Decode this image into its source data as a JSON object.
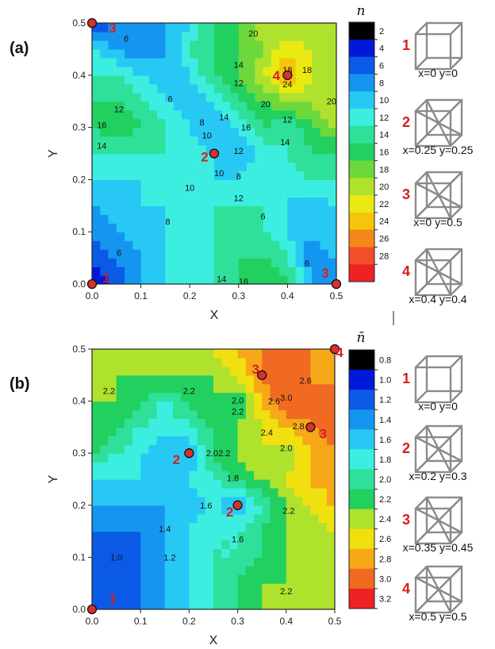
{
  "chart_data": [
    {
      "type": "heatmap",
      "panel": "(a)",
      "xlabel": "X",
      "ylabel": "Y",
      "xlim": [
        0,
        0.5
      ],
      "ylim": [
        0,
        0.5
      ],
      "xticks": [
        "0.0",
        "0.1",
        "0.2",
        "0.3",
        "0.4",
        "0.5"
      ],
      "yticks": [
        "0.0",
        "0.1",
        "0.2",
        "0.3",
        "0.4",
        "0.5"
      ],
      "colorbar": {
        "title": "n",
        "ticks": [
          "2",
          "4",
          "6",
          "8",
          "10",
          "12",
          "14",
          "16",
          "18",
          "20",
          "22",
          "24",
          "26",
          "28"
        ],
        "colors": [
          "#000000",
          "#0018d8",
          "#0a5ae6",
          "#1496f0",
          "#28c8f5",
          "#3ceee0",
          "#2fe09a",
          "#22d060",
          "#6cd83c",
          "#aee22c",
          "#e8ea12",
          "#f7c40c",
          "#f5881a",
          "#f24f28",
          "#ee2222"
        ]
      },
      "grid_x": [
        0,
        0.05,
        0.1,
        0.15,
        0.2,
        0.25,
        0.3,
        0.35,
        0.4,
        0.45,
        0.5
      ],
      "grid_y": [
        0,
        0.05,
        0.1,
        0.15,
        0.2,
        0.25,
        0.3,
        0.35,
        0.4,
        0.45,
        0.5
      ],
      "z": [
        [
          2,
          5,
          8,
          10,
          10,
          12,
          14,
          16,
          14,
          8,
          6
        ],
        [
          4,
          6,
          8,
          10,
          10,
          12,
          14,
          14,
          12,
          6,
          8
        ],
        [
          6,
          8,
          9,
          10,
          10,
          12,
          12,
          12,
          10,
          8,
          10
        ],
        [
          8,
          9,
          10,
          10,
          10,
          12,
          12,
          12,
          10,
          8,
          10
        ],
        [
          10,
          10,
          10,
          10,
          10,
          10,
          10,
          12,
          10,
          12,
          12
        ],
        [
          12,
          12,
          12,
          12,
          11,
          10,
          8,
          10,
          12,
          14,
          14
        ],
        [
          14,
          16,
          14,
          12,
          10,
          8,
          10,
          14,
          12,
          16,
          18
        ],
        [
          14,
          14,
          12,
          10,
          8,
          10,
          14,
          16,
          18,
          18,
          20
        ],
        [
          12,
          12,
          10,
          8,
          10,
          14,
          16,
          20,
          24,
          20,
          18
        ],
        [
          10,
          8,
          6,
          8,
          12,
          14,
          16,
          18,
          22,
          20,
          18
        ],
        [
          4,
          6,
          6,
          8,
          10,
          14,
          16,
          20,
          18,
          18,
          18
        ]
      ],
      "contour_labels": [
        {
          "x": 0.07,
          "y": 0.47,
          "text": "6"
        },
        {
          "x": 0.33,
          "y": 0.48,
          "text": "20"
        },
        {
          "x": 0.3,
          "y": 0.42,
          "text": "14"
        },
        {
          "x": 0.3,
          "y": 0.385,
          "text": "12"
        },
        {
          "x": 0.4,
          "y": 0.41,
          "text": "18"
        },
        {
          "x": 0.44,
          "y": 0.41,
          "text": "18"
        },
        {
          "x": 0.4,
          "y": 0.383,
          "text": "24"
        },
        {
          "x": 0.355,
          "y": 0.345,
          "text": "20"
        },
        {
          "x": 0.49,
          "y": 0.35,
          "text": "20"
        },
        {
          "x": 0.16,
          "y": 0.355,
          "text": "6"
        },
        {
          "x": 0.055,
          "y": 0.335,
          "text": "12"
        },
        {
          "x": 0.02,
          "y": 0.305,
          "text": "16"
        },
        {
          "x": 0.02,
          "y": 0.265,
          "text": "14"
        },
        {
          "x": 0.225,
          "y": 0.31,
          "text": "8"
        },
        {
          "x": 0.235,
          "y": 0.285,
          "text": "10"
        },
        {
          "x": 0.27,
          "y": 0.32,
          "text": "14"
        },
        {
          "x": 0.315,
          "y": 0.3,
          "text": "16"
        },
        {
          "x": 0.3,
          "y": 0.255,
          "text": "12"
        },
        {
          "x": 0.4,
          "y": 0.315,
          "text": "12"
        },
        {
          "x": 0.395,
          "y": 0.272,
          "text": "14"
        },
        {
          "x": 0.26,
          "y": 0.213,
          "text": "10"
        },
        {
          "x": 0.3,
          "y": 0.207,
          "text": "8"
        },
        {
          "x": 0.2,
          "y": 0.185,
          "text": "10"
        },
        {
          "x": 0.3,
          "y": 0.165,
          "text": "12"
        },
        {
          "x": 0.35,
          "y": 0.13,
          "text": "6"
        },
        {
          "x": 0.155,
          "y": 0.12,
          "text": "8"
        },
        {
          "x": 0.055,
          "y": 0.06,
          "text": "6"
        },
        {
          "x": 0.44,
          "y": 0.04,
          "text": "6"
        },
        {
          "x": 0.265,
          "y": 0.01,
          "text": "14"
        },
        {
          "x": 0.31,
          "y": 0.005,
          "text": "16"
        }
      ],
      "points": [
        {
          "x": 0,
          "y": 0.5,
          "label": "3"
        },
        {
          "x": 0,
          "y": 0,
          "label": "1"
        },
        {
          "x": 0.25,
          "y": 0.25,
          "label": "2"
        },
        {
          "x": 0.4,
          "y": 0.4,
          "label": "4"
        },
        {
          "x": 0.5,
          "y": 0,
          "label": "3"
        }
      ],
      "point_markers": [
        {
          "x": 0,
          "y": 0.5
        },
        {
          "x": 0,
          "y": 0
        },
        {
          "x": 0.25,
          "y": 0.25
        },
        {
          "x": 0.4,
          "y": 0.4
        },
        {
          "x": 0.5,
          "y": 0
        }
      ],
      "side_items": [
        {
          "num": "1",
          "caption": "x=0 y=0"
        },
        {
          "num": "2",
          "caption": "x=0.25 y=0.25"
        },
        {
          "num": "3",
          "caption": "x=0 y=0.5"
        },
        {
          "num": "4",
          "caption": "x=0.4 y=0.4"
        }
      ]
    },
    {
      "type": "heatmap",
      "panel": "(b)",
      "xlabel": "X",
      "ylabel": "Y",
      "xlim": [
        0,
        0.5
      ],
      "ylim": [
        0,
        0.5
      ],
      "xticks": [
        "0.0",
        "0.1",
        "0.2",
        "0.3",
        "0.4",
        "0.5"
      ],
      "yticks": [
        "0.0",
        "0.1",
        "0.2",
        "0.3",
        "0.4",
        "0.5"
      ],
      "colorbar": {
        "title": "n̄",
        "ticks": [
          "0.8",
          "1.0",
          "1.2",
          "1.4",
          "1.6",
          "1.8",
          "2.0",
          "2.2",
          "2.4",
          "2.6",
          "2.8",
          "3.0",
          "3.2"
        ],
        "colors": [
          "#000000",
          "#0018d8",
          "#0a5ae6",
          "#1496f0",
          "#28c8f5",
          "#3ceee0",
          "#2fe09a",
          "#22d060",
          "#aee22c",
          "#f0e010",
          "#f7a818",
          "#f06a22",
          "#ee2222"
        ]
      },
      "grid_x": [
        0,
        0.05,
        0.1,
        0.15,
        0.2,
        0.25,
        0.3,
        0.35,
        0.4,
        0.45,
        0.5
      ],
      "grid_y": [
        0,
        0.05,
        0.1,
        0.15,
        0.2,
        0.25,
        0.3,
        0.35,
        0.4,
        0.45,
        0.5
      ],
      "z": [
        [
          1.0,
          1.0,
          1.2,
          1.4,
          1.6,
          1.8,
          2.0,
          2.2,
          2.2,
          2.2,
          2.2
        ],
        [
          1.0,
          1.0,
          1.2,
          1.4,
          1.6,
          1.8,
          2.0,
          2.2,
          2.2,
          2.2,
          2.2
        ],
        [
          1.0,
          1.0,
          1.2,
          1.4,
          1.6,
          1.8,
          1.8,
          2.0,
          2.2,
          2.2,
          2.4
        ],
        [
          1.2,
          1.2,
          1.2,
          1.4,
          1.6,
          1.8,
          1.8,
          2.0,
          2.2,
          2.2,
          2.4
        ],
        [
          1.4,
          1.4,
          1.4,
          1.4,
          1.5,
          1.6,
          1.4,
          1.8,
          2.2,
          2.4,
          2.6
        ],
        [
          1.6,
          1.6,
          1.6,
          1.5,
          1.6,
          1.8,
          2.0,
          2.2,
          2.4,
          2.6,
          2.8
        ],
        [
          2.0,
          1.8,
          1.6,
          1.5,
          1.4,
          2.0,
          2.2,
          2.4,
          2.2,
          2.6,
          2.8
        ],
        [
          2.2,
          2.0,
          1.8,
          1.6,
          1.8,
          2.0,
          2.2,
          2.4,
          2.6,
          2.8,
          2.9
        ],
        [
          2.2,
          2.2,
          2.0,
          1.8,
          2.0,
          2.2,
          2.0,
          2.6,
          3.0,
          2.8,
          2.9
        ],
        [
          2.2,
          2.2,
          2.2,
          2.2,
          2.2,
          2.2,
          2.4,
          2.8,
          3.0,
          2.8,
          2.7
        ],
        [
          2.2,
          2.2,
          2.2,
          2.2,
          2.2,
          2.4,
          2.6,
          2.8,
          2.9,
          2.8,
          2.7
        ]
      ],
      "contour_labels": [
        {
          "x": 0.035,
          "y": 0.42,
          "text": "2.2"
        },
        {
          "x": 0.2,
          "y": 0.42,
          "text": "2.2"
        },
        {
          "x": 0.3,
          "y": 0.402,
          "text": "2.0"
        },
        {
          "x": 0.3,
          "y": 0.38,
          "text": "2.2"
        },
        {
          "x": 0.375,
          "y": 0.4,
          "text": "2.6"
        },
        {
          "x": 0.44,
          "y": 0.44,
          "text": "2.6"
        },
        {
          "x": 0.4,
          "y": 0.407,
          "text": "3.0"
        },
        {
          "x": 0.425,
          "y": 0.352,
          "text": "2.8"
        },
        {
          "x": 0.36,
          "y": 0.34,
          "text": "2.4"
        },
        {
          "x": 0.4,
          "y": 0.31,
          "text": "2.0"
        },
        {
          "x": 0.26,
          "y": 0.3,
          "text": "2.02.2"
        },
        {
          "x": 0.29,
          "y": 0.252,
          "text": "1.8"
        },
        {
          "x": 0.235,
          "y": 0.2,
          "text": "1.6"
        },
        {
          "x": 0.15,
          "y": 0.155,
          "text": "1.4"
        },
        {
          "x": 0.405,
          "y": 0.19,
          "text": "2.2"
        },
        {
          "x": 0.05,
          "y": 0.1,
          "text": "1.0"
        },
        {
          "x": 0.16,
          "y": 0.1,
          "text": "1.2"
        },
        {
          "x": 0.3,
          "y": 0.135,
          "text": "1.6"
        },
        {
          "x": 0.4,
          "y": 0.035,
          "text": "2.2"
        }
      ],
      "points": [
        {
          "x": 0,
          "y": 0,
          "label": "1"
        },
        {
          "x": 0.2,
          "y": 0.3,
          "label": "2"
        },
        {
          "x": 0.3,
          "y": 0.2,
          "label": "2"
        },
        {
          "x": 0.35,
          "y": 0.45,
          "label": "3"
        },
        {
          "x": 0.45,
          "y": 0.35,
          "label": "3"
        },
        {
          "x": 0.5,
          "y": 0.5,
          "label": "4"
        }
      ],
      "point_markers": [
        {
          "x": 0,
          "y": 0
        },
        {
          "x": 0.2,
          "y": 0.3
        },
        {
          "x": 0.3,
          "y": 0.2
        },
        {
          "x": 0.35,
          "y": 0.45
        },
        {
          "x": 0.45,
          "y": 0.35
        },
        {
          "x": 0.5,
          "y": 0.5
        }
      ],
      "side_items": [
        {
          "num": "1",
          "caption": "x=0 y=0"
        },
        {
          "num": "2",
          "caption": "x=0.2 y=0.3"
        },
        {
          "num": "3",
          "caption": "x=0.35 y=0.45"
        },
        {
          "num": "4",
          "caption": "x=0.5 y=0.5"
        }
      ]
    }
  ]
}
